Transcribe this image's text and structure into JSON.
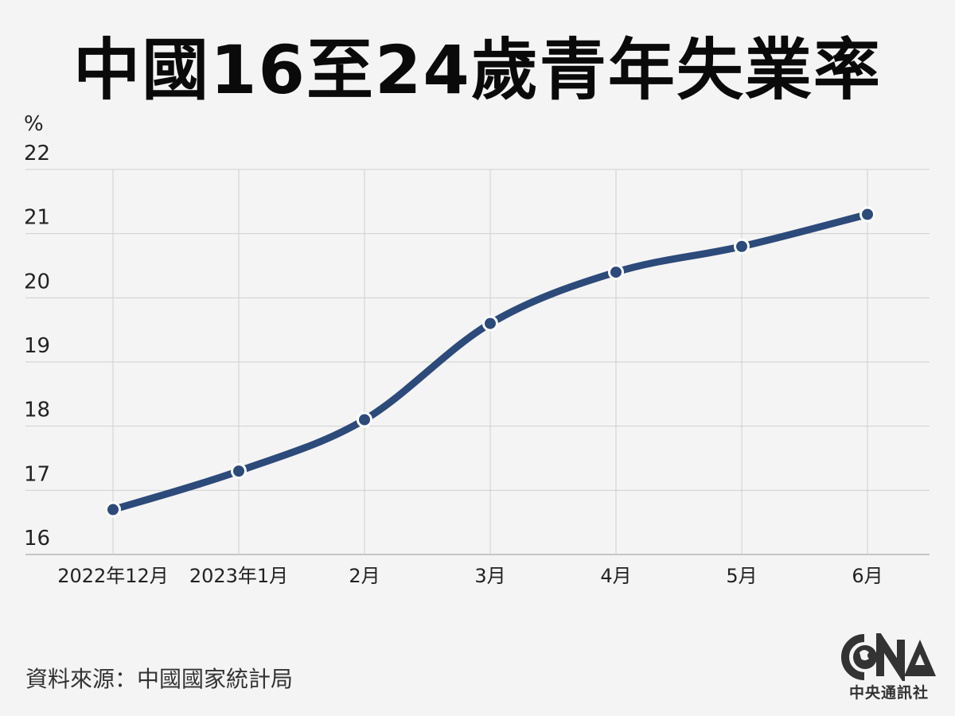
{
  "chart_data": {
    "type": "line",
    "title": "中國16至24歲青年失業率",
    "ylabel": "%",
    "xlabel": "",
    "categories": [
      "2022年12月",
      "2023年1月",
      "2月",
      "3月",
      "4月",
      "5月",
      "6月"
    ],
    "values": [
      16.7,
      17.3,
      18.1,
      19.6,
      20.4,
      20.8,
      21.3
    ],
    "ylim": [
      16,
      22
    ],
    "yticks": [
      16,
      17,
      18,
      19,
      20,
      21,
      22
    ],
    "grid": true,
    "legend": "none",
    "line_color": "#2c4a7a",
    "marker_color": "#2c4a7a"
  },
  "source": "資料來源：中國國家統計局",
  "logo": {
    "letters": "CNA",
    "name": "中央通訊社",
    "icon": "globe-icon"
  }
}
